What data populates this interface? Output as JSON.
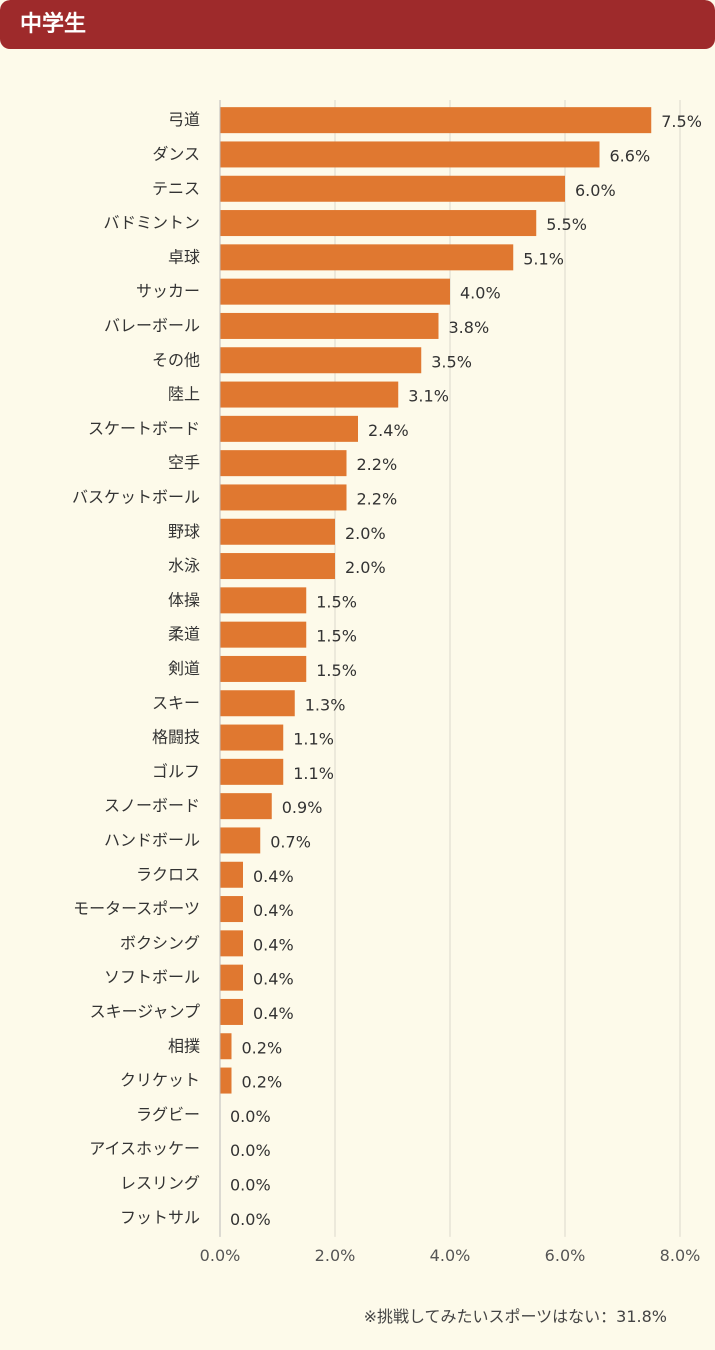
{
  "header": {
    "title": "中学生"
  },
  "colors": {
    "bar": "#e07830",
    "header": "#9e2a2b",
    "background": "#fdfaea",
    "grid": "#dcd8cc"
  },
  "chart_data": {
    "type": "bar",
    "orientation": "horizontal",
    "title": "",
    "xlabel": "",
    "ylabel": "",
    "xlim": [
      0,
      8
    ],
    "x_ticks": [
      "0.0%",
      "2.0%",
      "4.0%",
      "6.0%",
      "8.0%"
    ],
    "grid": true,
    "categories": [
      "弓道",
      "ダンス",
      "テニス",
      "バドミントン",
      "卓球",
      "サッカー",
      "バレーボール",
      "その他",
      "陸上",
      "スケートボード",
      "空手",
      "バスケットボール",
      "野球",
      "水泳",
      "体操",
      "柔道",
      "剣道",
      "スキー",
      "格闘技",
      "ゴルフ",
      "スノーボード",
      "ハンドボール",
      "ラクロス",
      "モータースポーツ",
      "ボクシング",
      "ソフトボール",
      "スキージャンプ",
      "相撲",
      "クリケット",
      "ラグビー",
      "アイスホッケー",
      "レスリング",
      "フットサル"
    ],
    "values": [
      7.5,
      6.6,
      6.0,
      5.5,
      5.1,
      4.0,
      3.8,
      3.5,
      3.1,
      2.4,
      2.2,
      2.2,
      2.0,
      2.0,
      1.5,
      1.5,
      1.5,
      1.3,
      1.1,
      1.1,
      0.9,
      0.7,
      0.4,
      0.4,
      0.4,
      0.4,
      0.4,
      0.2,
      0.2,
      0.0,
      0.0,
      0.0,
      0.0
    ],
    "value_labels": [
      "7.5%",
      "6.6%",
      "6.0%",
      "5.5%",
      "5.1%",
      "4.0%",
      "3.8%",
      "3.5%",
      "3.1%",
      "2.4%",
      "2.2%",
      "2.2%",
      "2.0%",
      "2.0%",
      "1.5%",
      "1.5%",
      "1.5%",
      "1.3%",
      "1.1%",
      "1.1%",
      "0.9%",
      "0.7%",
      "0.4%",
      "0.4%",
      "0.4%",
      "0.4%",
      "0.4%",
      "0.2%",
      "0.2%",
      "0.0%",
      "0.0%",
      "0.0%",
      "0.0%"
    ]
  },
  "footnote": "※挑戦してみたいスポーツはない：31.8%"
}
